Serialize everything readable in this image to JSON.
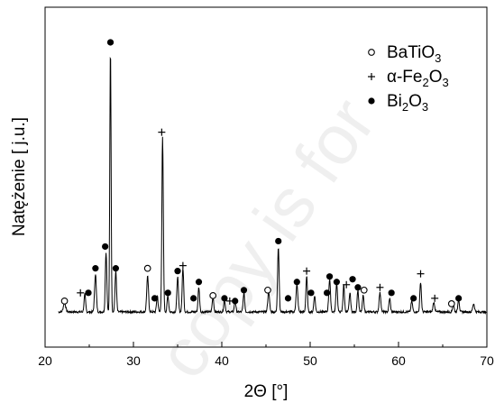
{
  "chart_data": {
    "type": "line",
    "title": "",
    "xlabel": "2Θ [°]",
    "ylabel": "Natężenie [ j.u.]",
    "xlim": [
      20,
      70
    ],
    "xticks": [
      20,
      30,
      40,
      50,
      60,
      70
    ],
    "yticks_shown": false,
    "grid": false,
    "legend_position": "top-right",
    "legend": [
      {
        "marker": "o",
        "label_parts": [
          [
            "BaTiO",
            false
          ],
          [
            "3",
            true
          ]
        ]
      },
      {
        "marker": "+",
        "label_parts": [
          [
            "α-Fe",
            false
          ],
          [
            "2",
            true
          ],
          [
            "O",
            false
          ],
          [
            "3",
            true
          ]
        ]
      },
      {
        "marker": "●",
        "label_parts": [
          [
            "Bi",
            false
          ],
          [
            "2",
            true
          ],
          [
            "O",
            false
          ],
          [
            "3",
            true
          ]
        ]
      }
    ],
    "baseline": 2,
    "peaks": [
      {
        "x": 22.2,
        "y": 3.5,
        "w": 0.18
      },
      {
        "x": 24.5,
        "y": 6.5,
        "w": 0.12
      },
      {
        "x": 25.7,
        "y": 14.0,
        "w": 0.14
      },
      {
        "x": 26.9,
        "y": 22.0,
        "w": 0.12
      },
      {
        "x": 27.4,
        "y": 97.0,
        "w": 0.1
      },
      {
        "x": 28.0,
        "y": 15.0,
        "w": 0.12
      },
      {
        "x": 31.6,
        "y": 13.0,
        "w": 0.14
      },
      {
        "x": 32.7,
        "y": 6.0,
        "w": 0.12
      },
      {
        "x": 33.3,
        "y": 64.0,
        "w": 0.12
      },
      {
        "x": 33.9,
        "y": 6.0,
        "w": 0.12
      },
      {
        "x": 35.0,
        "y": 13.0,
        "w": 0.12
      },
      {
        "x": 35.6,
        "y": 16.0,
        "w": 0.12
      },
      {
        "x": 37.4,
        "y": 9.0,
        "w": 0.12
      },
      {
        "x": 39.0,
        "y": 5.5,
        "w": 0.12
      },
      {
        "x": 40.3,
        "y": 4.5,
        "w": 0.12
      },
      {
        "x": 41.5,
        "y": 4.0,
        "w": 0.12
      },
      {
        "x": 42.5,
        "y": 7.0,
        "w": 0.12
      },
      {
        "x": 45.3,
        "y": 7.5,
        "w": 0.14
      },
      {
        "x": 46.4,
        "y": 24.0,
        "w": 0.12
      },
      {
        "x": 48.5,
        "y": 10.0,
        "w": 0.14
      },
      {
        "x": 49.6,
        "y": 13.0,
        "w": 0.12
      },
      {
        "x": 50.5,
        "y": 6.0,
        "w": 0.12
      },
      {
        "x": 52.2,
        "y": 12.0,
        "w": 0.14
      },
      {
        "x": 53.0,
        "y": 11.0,
        "w": 0.12
      },
      {
        "x": 53.8,
        "y": 10.0,
        "w": 0.12
      },
      {
        "x": 54.5,
        "y": 7.0,
        "w": 0.12
      },
      {
        "x": 55.4,
        "y": 8.0,
        "w": 0.12
      },
      {
        "x": 56.0,
        "y": 6.0,
        "w": 0.12
      },
      {
        "x": 57.9,
        "y": 7.0,
        "w": 0.14
      },
      {
        "x": 59.0,
        "y": 5.0,
        "w": 0.12
      },
      {
        "x": 61.5,
        "y": 4.0,
        "w": 0.12
      },
      {
        "x": 62.5,
        "y": 11.0,
        "w": 0.12
      },
      {
        "x": 64.0,
        "y": 3.5,
        "w": 0.14
      },
      {
        "x": 66.2,
        "y": 3.0,
        "w": 0.12
      },
      {
        "x": 66.8,
        "y": 5.0,
        "w": 0.12
      },
      {
        "x": 68.5,
        "y": 3.0,
        "w": 0.14
      }
    ],
    "phase_markers": [
      {
        "phase": "BaTiO3",
        "marker": "o",
        "x": 22.2,
        "y": 6
      },
      {
        "phase": "α-Fe2O3",
        "marker": "+",
        "x": 24.0,
        "y": 9
      },
      {
        "phase": "Bi2O3",
        "marker": "●",
        "x": 24.9,
        "y": 9
      },
      {
        "phase": "Bi2O3",
        "marker": "●",
        "x": 25.7,
        "y": 18
      },
      {
        "phase": "Bi2O3",
        "marker": "●",
        "x": 26.8,
        "y": 26
      },
      {
        "phase": "Bi2O3",
        "marker": "●",
        "x": 27.4,
        "y": 101
      },
      {
        "phase": "Bi2O3",
        "marker": "●",
        "x": 28.0,
        "y": 18
      },
      {
        "phase": "BaTiO3",
        "marker": "o",
        "x": 31.6,
        "y": 18
      },
      {
        "phase": "Bi2O3",
        "marker": "●",
        "x": 32.4,
        "y": 7
      },
      {
        "phase": "α-Fe2O3",
        "marker": "+",
        "x": 33.2,
        "y": 68
      },
      {
        "phase": "Bi2O3",
        "marker": "●",
        "x": 33.9,
        "y": 9
      },
      {
        "phase": "Bi2O3",
        "marker": "●",
        "x": 35.0,
        "y": 17
      },
      {
        "phase": "α-Fe2O3",
        "marker": "+",
        "x": 35.6,
        "y": 19
      },
      {
        "phase": "Bi2O3",
        "marker": "●",
        "x": 36.8,
        "y": 7
      },
      {
        "phase": "Bi2O3",
        "marker": "●",
        "x": 37.4,
        "y": 13
      },
      {
        "phase": "BaTiO3",
        "marker": "o",
        "x": 39.0,
        "y": 8
      },
      {
        "phase": "Bi2O3",
        "marker": "●",
        "x": 40.3,
        "y": 7
      },
      {
        "phase": "α-Fe2O3",
        "marker": "+",
        "x": 40.9,
        "y": 6
      },
      {
        "phase": "Bi2O3",
        "marker": "●",
        "x": 41.5,
        "y": 6
      },
      {
        "phase": "Bi2O3",
        "marker": "●",
        "x": 42.5,
        "y": 10
      },
      {
        "phase": "BaTiO3",
        "marker": "o",
        "x": 45.2,
        "y": 10
      },
      {
        "phase": "Bi2O3",
        "marker": "●",
        "x": 46.4,
        "y": 28
      },
      {
        "phase": "Bi2O3",
        "marker": "●",
        "x": 47.5,
        "y": 7
      },
      {
        "phase": "Bi2O3",
        "marker": "●",
        "x": 48.5,
        "y": 13
      },
      {
        "phase": "α-Fe2O3",
        "marker": "+",
        "x": 49.6,
        "y": 17
      },
      {
        "phase": "Bi2O3",
        "marker": "●",
        "x": 50.1,
        "y": 9
      },
      {
        "phase": "Bi2O3",
        "marker": "●",
        "x": 52.2,
        "y": 15
      },
      {
        "phase": "Bi2O3",
        "marker": "●",
        "x": 51.9,
        "y": 9
      },
      {
        "phase": "Bi2O3",
        "marker": "●",
        "x": 53.0,
        "y": 13
      },
      {
        "phase": "α-Fe2O3",
        "marker": "+",
        "x": 54.1,
        "y": 12
      },
      {
        "phase": "Bi2O3",
        "marker": "●",
        "x": 54.8,
        "y": 14
      },
      {
        "phase": "Bi2O3",
        "marker": "●",
        "x": 55.4,
        "y": 11
      },
      {
        "phase": "BaTiO3",
        "marker": "o",
        "x": 56.1,
        "y": 10
      },
      {
        "phase": "α-Fe2O3",
        "marker": "+",
        "x": 57.9,
        "y": 11
      },
      {
        "phase": "Bi2O3",
        "marker": "●",
        "x": 59.2,
        "y": 9
      },
      {
        "phase": "Bi2O3",
        "marker": "●",
        "x": 61.7,
        "y": 7
      },
      {
        "phase": "α-Fe2O3",
        "marker": "+",
        "x": 62.5,
        "y": 16
      },
      {
        "phase": "α-Fe2O3",
        "marker": "+",
        "x": 64.1,
        "y": 7
      },
      {
        "phase": "BaTiO3",
        "marker": "o",
        "x": 66.0,
        "y": 5
      },
      {
        "phase": "Bi2O3",
        "marker": "●",
        "x": 66.8,
        "y": 7
      }
    ]
  },
  "watermark": {
    "text": "copy is for"
  }
}
